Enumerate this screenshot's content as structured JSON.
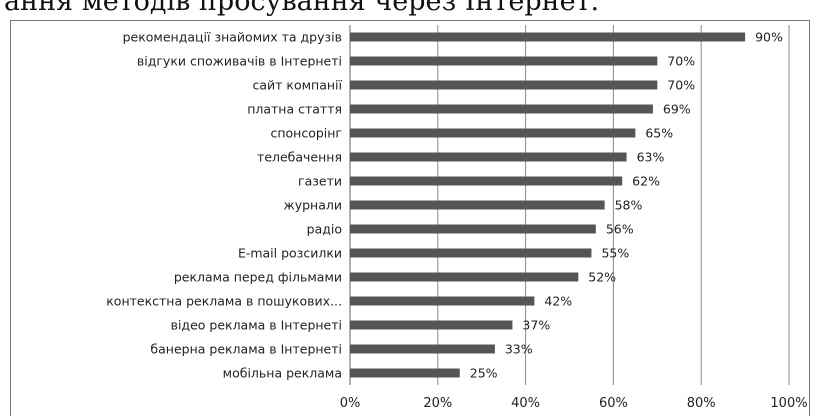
{
  "header": {
    "text": "ання методів просування через Інтернет."
  },
  "chart_data": {
    "type": "bar",
    "orientation": "horizontal",
    "categories": [
      "рекомендації знайомих та друзів",
      "відгуки споживачів в Інтернеті",
      "сайт компанії",
      "платна стаття",
      "спонсорінг",
      "телебачення",
      "газети",
      "журнали",
      "радіо",
      "E-mail розсилки",
      "реклама перед фільмами",
      "контекстна реклама в пошукових...",
      "відео реклама в Інтернеті",
      "банерна реклама в Інтернеті",
      "мобільна реклама"
    ],
    "values": [
      90,
      70,
      70,
      69,
      65,
      63,
      62,
      58,
      56,
      55,
      52,
      42,
      37,
      33,
      25
    ],
    "value_labels": [
      "90%",
      "70%",
      "70%",
      "69%",
      "65%",
      "63%",
      "62%",
      "58%",
      "56%",
      "55%",
      "52%",
      "42%",
      "37%",
      "33%",
      "25%"
    ],
    "xlim": [
      0,
      100
    ],
    "x_ticks": [
      "0%",
      "20%",
      "40%",
      "60%",
      "80%",
      "100%"
    ],
    "grid": true,
    "bar_color": "#555555",
    "title": "",
    "xlabel": "",
    "ylabel": ""
  }
}
